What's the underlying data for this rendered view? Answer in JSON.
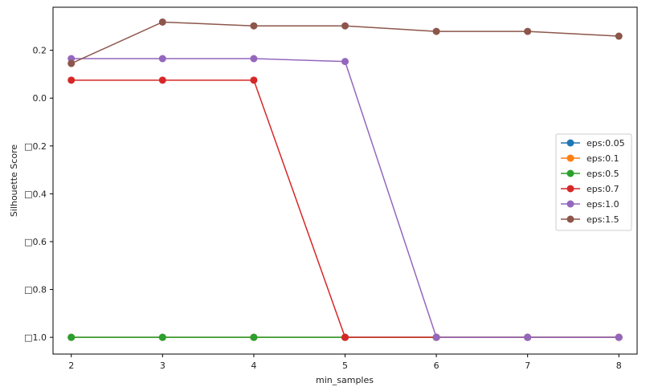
{
  "chart_data": {
    "type": "line",
    "title": "",
    "xlabel": "min_samples",
    "ylabel": "Silhouette Score",
    "x": [
      2,
      3,
      4,
      5,
      6,
      7,
      8
    ],
    "xlim": [
      1.8,
      8.2
    ],
    "ylim": [
      -1.07,
      0.38
    ],
    "x_ticks": [
      2,
      3,
      4,
      5,
      6,
      7,
      8
    ],
    "y_ticks": [
      0.2,
      0.0,
      -0.2,
      -0.4,
      -0.6,
      -0.8,
      -1.0
    ],
    "y_tick_labels": [
      "0.2",
      "0.0",
      "□0.2",
      "□0.4",
      "□0.6",
      "□0.8",
      "□1.0"
    ],
    "grid": false,
    "legend_position": "center-right",
    "series": [
      {
        "name": "eps:0.05",
        "color": "#1f77b4",
        "values": [
          -1.0,
          -1.0,
          -1.0,
          -1.0,
          -1.0,
          -1.0,
          -1.0
        ]
      },
      {
        "name": "eps:0.1",
        "color": "#ff7f0e",
        "values": [
          -1.0,
          -1.0,
          -1.0,
          -1.0,
          -1.0,
          -1.0,
          -1.0
        ]
      },
      {
        "name": "eps:0.5",
        "color": "#2ca02c",
        "values": [
          -1.0,
          -1.0,
          -1.0,
          -1.0,
          -1.0,
          -1.0,
          -1.0
        ]
      },
      {
        "name": "eps:0.7",
        "color": "#d62728",
        "values": [
          0.075,
          0.075,
          0.075,
          -1.0,
          -1.0,
          -1.0,
          -1.0
        ]
      },
      {
        "name": "eps:1.0",
        "color": "#9467bd",
        "values": [
          0.165,
          0.165,
          0.165,
          0.153,
          -1.0,
          -1.0,
          -1.0
        ]
      },
      {
        "name": "eps:1.5",
        "color": "#8c564b",
        "values": [
          0.145,
          0.318,
          0.302,
          0.302,
          0.279,
          0.279,
          0.259
        ]
      }
    ]
  }
}
